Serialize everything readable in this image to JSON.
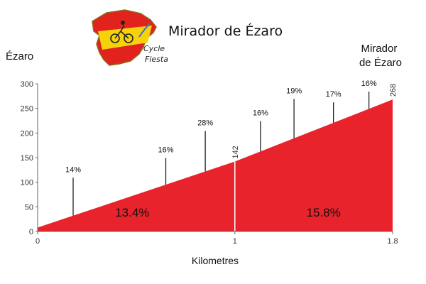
{
  "title": "Mirador de Ézaro",
  "logo": {
    "line1": "Cycle",
    "line2": "Fiesta",
    "colors": {
      "red": "#e2221c",
      "yellow": "#f5d20b",
      "outline": "#8a6a1c"
    }
  },
  "chart_data": {
    "type": "area",
    "title": "Mirador de Ézaro",
    "xlabel": "Kilometres",
    "ylabel": "",
    "start_label": "Ézaro",
    "end_label_lines": [
      "Mirador",
      "de Ézaro"
    ],
    "xlim": [
      0,
      1.8
    ],
    "ylim": [
      0,
      300
    ],
    "x_ticks": [
      {
        "value": 0,
        "label": "0"
      },
      {
        "value": 1,
        "label": "1"
      },
      {
        "value": 1.8,
        "label": "1.8"
      }
    ],
    "y_ticks": [
      0,
      50,
      100,
      150,
      200,
      250,
      300
    ],
    "profile": [
      {
        "x": 0,
        "y": 8
      },
      {
        "x": 1,
        "y": 142
      },
      {
        "x": 1.8,
        "y": 268
      }
    ],
    "elevation_labels": [
      {
        "x": 1,
        "y": 142,
        "label": "142"
      },
      {
        "x": 1.8,
        "y": 268,
        "label": "268"
      }
    ],
    "segment_gradients": [
      {
        "x": 0.48,
        "y": 30,
        "label": "13.4%"
      },
      {
        "x": 1.45,
        "y": 30,
        "label": "15.8%"
      }
    ],
    "gradient_markers": [
      {
        "x": 0.18,
        "top": 115,
        "label": "14%"
      },
      {
        "x": 0.65,
        "top": 155,
        "label": "16%"
      },
      {
        "x": 0.85,
        "top": 210,
        "label": "28%"
      },
      {
        "x": 1.13,
        "top": 230,
        "label": "16%"
      },
      {
        "x": 1.3,
        "top": 275,
        "label": "19%"
      },
      {
        "x": 1.5,
        "top": 268,
        "label": "17%"
      },
      {
        "x": 1.68,
        "top": 290,
        "label": "16%"
      }
    ],
    "colors": {
      "fill": "#e8232b",
      "axis": "#666666",
      "marker": "#111111"
    }
  }
}
